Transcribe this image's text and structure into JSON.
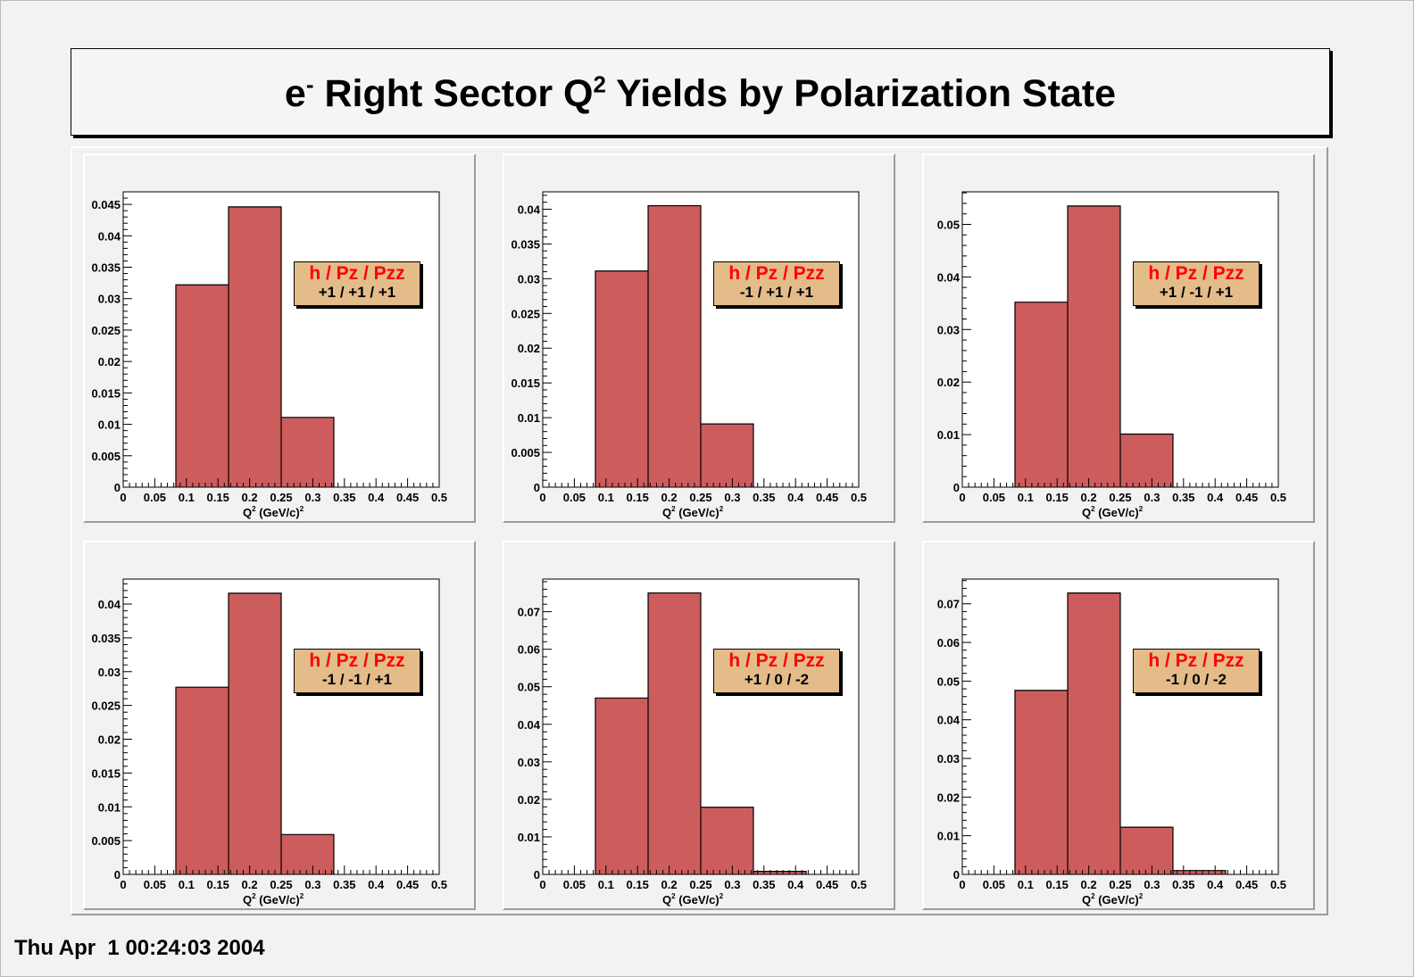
{
  "page": {
    "title_prefix": "e",
    "title_prefix_sup": "-",
    "title_middle": " Right Sector Q",
    "title_middle_sup": "2",
    "title_suffix": " Yields by Polarization State",
    "timestamp": "Thu Apr  1 00:24:03 2004"
  },
  "colors": {
    "bar_fill": "#cd5c5c",
    "legend_fill": "#e3bc8a",
    "legend_header": "#ff0000"
  },
  "chart_data": [
    {
      "type": "bar",
      "xlabel": "Q",
      "xlabel_sup": "2",
      "xlabel_unit": " (GeV/c)",
      "xlabel_unit_sup": "2",
      "legend_header": "h / Pz / Pzz",
      "legend_value": "+1 / +1 / +1",
      "xlim": [
        0,
        0.5
      ],
      "ylim": [
        0,
        0.047
      ],
      "xticks": [
        "0",
        "0.05",
        "0.1",
        "0.15",
        "0.2",
        "0.25",
        "0.3",
        "0.35",
        "0.4",
        "0.45",
        "0.5"
      ],
      "yticks": [
        {
          "value": 0,
          "label": "0"
        },
        {
          "value": 0.005,
          "label": "0.005"
        },
        {
          "value": 0.01,
          "label": "0.01"
        },
        {
          "value": 0.015,
          "label": "0.015"
        },
        {
          "value": 0.02,
          "label": "0.02"
        },
        {
          "value": 0.025,
          "label": "0.025"
        },
        {
          "value": 0.03,
          "label": "0.03"
        },
        {
          "value": 0.035,
          "label": "0.035"
        },
        {
          "value": 0.04,
          "label": "0.04"
        },
        {
          "value": 0.045,
          "label": "0.045"
        }
      ],
      "bins": [
        {
          "x0": 0.0833,
          "x1": 0.1667,
          "value": 0.0322
        },
        {
          "x0": 0.1667,
          "x1": 0.25,
          "value": 0.0446
        },
        {
          "x0": 0.25,
          "x1": 0.3333,
          "value": 0.0111
        }
      ]
    },
    {
      "type": "bar",
      "xlabel": "Q",
      "xlabel_sup": "2",
      "xlabel_unit": " (GeV/c)",
      "xlabel_unit_sup": "2",
      "legend_header": "h / Pz / Pzz",
      "legend_value": "-1 / +1 / +1",
      "xlim": [
        0,
        0.5
      ],
      "ylim": [
        0,
        0.0425
      ],
      "xticks": [
        "0",
        "0.05",
        "0.1",
        "0.15",
        "0.2",
        "0.25",
        "0.3",
        "0.35",
        "0.4",
        "0.45",
        "0.5"
      ],
      "yticks": [
        {
          "value": 0,
          "label": "0"
        },
        {
          "value": 0.005,
          "label": "0.005"
        },
        {
          "value": 0.01,
          "label": "0.01"
        },
        {
          "value": 0.015,
          "label": "0.015"
        },
        {
          "value": 0.02,
          "label": "0.02"
        },
        {
          "value": 0.025,
          "label": "0.025"
        },
        {
          "value": 0.03,
          "label": "0.03"
        },
        {
          "value": 0.035,
          "label": "0.035"
        },
        {
          "value": 0.04,
          "label": "0.04"
        }
      ],
      "bins": [
        {
          "x0": 0.0833,
          "x1": 0.1667,
          "value": 0.0311
        },
        {
          "x0": 0.1667,
          "x1": 0.25,
          "value": 0.0405
        },
        {
          "x0": 0.25,
          "x1": 0.3333,
          "value": 0.0091
        }
      ]
    },
    {
      "type": "bar",
      "xlabel": "Q",
      "xlabel_sup": "2",
      "xlabel_unit": " (GeV/c)",
      "xlabel_unit_sup": "2",
      "legend_header": "h / Pz / Pzz",
      "legend_value": "+1 / -1 / +1",
      "xlim": [
        0,
        0.5
      ],
      "ylim": [
        0,
        0.0562
      ],
      "xticks": [
        "0",
        "0.05",
        "0.1",
        "0.15",
        "0.2",
        "0.25",
        "0.3",
        "0.35",
        "0.4",
        "0.45",
        "0.5"
      ],
      "yticks": [
        {
          "value": 0,
          "label": "0"
        },
        {
          "value": 0.01,
          "label": "0.01"
        },
        {
          "value": 0.02,
          "label": "0.02"
        },
        {
          "value": 0.03,
          "label": "0.03"
        },
        {
          "value": 0.04,
          "label": "0.04"
        },
        {
          "value": 0.05,
          "label": "0.05"
        }
      ],
      "bins": [
        {
          "x0": 0.0833,
          "x1": 0.1667,
          "value": 0.0352
        },
        {
          "x0": 0.1667,
          "x1": 0.25,
          "value": 0.0535
        },
        {
          "x0": 0.25,
          "x1": 0.3333,
          "value": 0.0101
        }
      ]
    },
    {
      "type": "bar",
      "xlabel": "Q",
      "xlabel_sup": "2",
      "xlabel_unit": " (GeV/c)",
      "xlabel_unit_sup": "2",
      "legend_header": "h / Pz / Pzz",
      "legend_value": "-1 / -1 / +1",
      "xlim": [
        0,
        0.5
      ],
      "ylim": [
        0,
        0.0437
      ],
      "xticks": [
        "0",
        "0.05",
        "0.1",
        "0.15",
        "0.2",
        "0.25",
        "0.3",
        "0.35",
        "0.4",
        "0.45",
        "0.5"
      ],
      "yticks": [
        {
          "value": 0,
          "label": "0"
        },
        {
          "value": 0.005,
          "label": "0.005"
        },
        {
          "value": 0.01,
          "label": "0.01"
        },
        {
          "value": 0.015,
          "label": "0.015"
        },
        {
          "value": 0.02,
          "label": "0.02"
        },
        {
          "value": 0.025,
          "label": "0.025"
        },
        {
          "value": 0.03,
          "label": "0.03"
        },
        {
          "value": 0.035,
          "label": "0.035"
        },
        {
          "value": 0.04,
          "label": "0.04"
        }
      ],
      "bins": [
        {
          "x0": 0.0833,
          "x1": 0.1667,
          "value": 0.0277
        },
        {
          "x0": 0.1667,
          "x1": 0.25,
          "value": 0.0416
        },
        {
          "x0": 0.25,
          "x1": 0.3333,
          "value": 0.0059
        }
      ]
    },
    {
      "type": "bar",
      "xlabel": "Q",
      "xlabel_sup": "2",
      "xlabel_unit": " (GeV/c)",
      "xlabel_unit_sup": "2",
      "legend_header": "h / Pz / Pzz",
      "legend_value": "+1 / 0 / -2",
      "xlim": [
        0,
        0.5
      ],
      "ylim": [
        0,
        0.0787
      ],
      "xticks": [
        "0",
        "0.05",
        "0.1",
        "0.15",
        "0.2",
        "0.25",
        "0.3",
        "0.35",
        "0.4",
        "0.45",
        "0.5"
      ],
      "yticks": [
        {
          "value": 0,
          "label": "0"
        },
        {
          "value": 0.01,
          "label": "0.01"
        },
        {
          "value": 0.02,
          "label": "0.02"
        },
        {
          "value": 0.03,
          "label": "0.03"
        },
        {
          "value": 0.04,
          "label": "0.04"
        },
        {
          "value": 0.05,
          "label": "0.05"
        },
        {
          "value": 0.06,
          "label": "0.06"
        },
        {
          "value": 0.07,
          "label": "0.07"
        }
      ],
      "bins": [
        {
          "x0": 0.0833,
          "x1": 0.1667,
          "value": 0.047
        },
        {
          "x0": 0.1667,
          "x1": 0.25,
          "value": 0.075
        },
        {
          "x0": 0.25,
          "x1": 0.3333,
          "value": 0.0179
        },
        {
          "x0": 0.3333,
          "x1": 0.4167,
          "value": 0.0008
        }
      ]
    },
    {
      "type": "bar",
      "xlabel": "Q",
      "xlabel_sup": "2",
      "xlabel_unit": " (GeV/c)",
      "xlabel_unit_sup": "2",
      "legend_header": "h / Pz / Pzz",
      "legend_value": "-1 / 0 / -2",
      "xlim": [
        0,
        0.5
      ],
      "ylim": [
        0,
        0.0764
      ],
      "xticks": [
        "0",
        "0.05",
        "0.1",
        "0.15",
        "0.2",
        "0.25",
        "0.3",
        "0.35",
        "0.4",
        "0.45",
        "0.5"
      ],
      "yticks": [
        {
          "value": 0,
          "label": "0"
        },
        {
          "value": 0.01,
          "label": "0.01"
        },
        {
          "value": 0.02,
          "label": "0.02"
        },
        {
          "value": 0.03,
          "label": "0.03"
        },
        {
          "value": 0.04,
          "label": "0.04"
        },
        {
          "value": 0.05,
          "label": "0.05"
        },
        {
          "value": 0.06,
          "label": "0.06"
        },
        {
          "value": 0.07,
          "label": "0.07"
        }
      ],
      "bins": [
        {
          "x0": 0.0833,
          "x1": 0.1667,
          "value": 0.0476
        },
        {
          "x0": 0.1667,
          "x1": 0.25,
          "value": 0.0728
        },
        {
          "x0": 0.25,
          "x1": 0.3333,
          "value": 0.0122
        },
        {
          "x0": 0.3333,
          "x1": 0.4167,
          "value": 0.001
        }
      ]
    }
  ]
}
